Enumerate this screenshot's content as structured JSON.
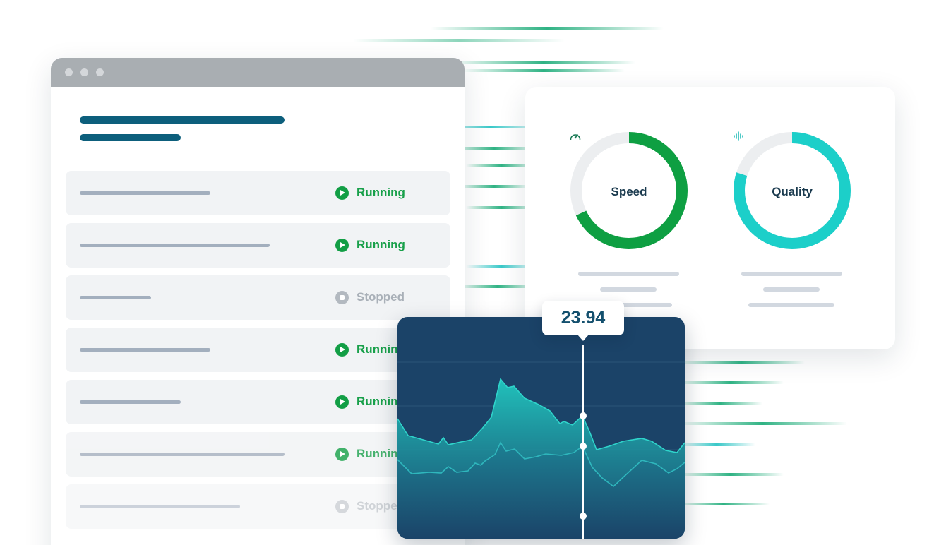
{
  "jobs": {
    "items": [
      {
        "status": "Running",
        "state": "running"
      },
      {
        "status": "Running",
        "state": "running"
      },
      {
        "status": "Stopped",
        "state": "stopped"
      },
      {
        "status": "Running",
        "state": "running"
      },
      {
        "status": "Running",
        "state": "running"
      },
      {
        "status": "Running",
        "state": "running"
      },
      {
        "status": "Stopped",
        "state": "stopped"
      }
    ]
  },
  "metrics": {
    "speed": {
      "label": "Speed",
      "icon": "speedometer-icon",
      "level": 0.68,
      "color": "#0e9f42"
    },
    "quality": {
      "label": "Quality",
      "icon": "waveform-icon",
      "level": 0.8,
      "color": "#1ccfc9"
    }
  },
  "trend": {
    "tooltip_value": "23.94"
  },
  "colors": {
    "running": "#129e45",
    "stopped": "#b3b9c0",
    "title_accent": "#0d5f7c",
    "chart_background": "#1b4368"
  }
}
